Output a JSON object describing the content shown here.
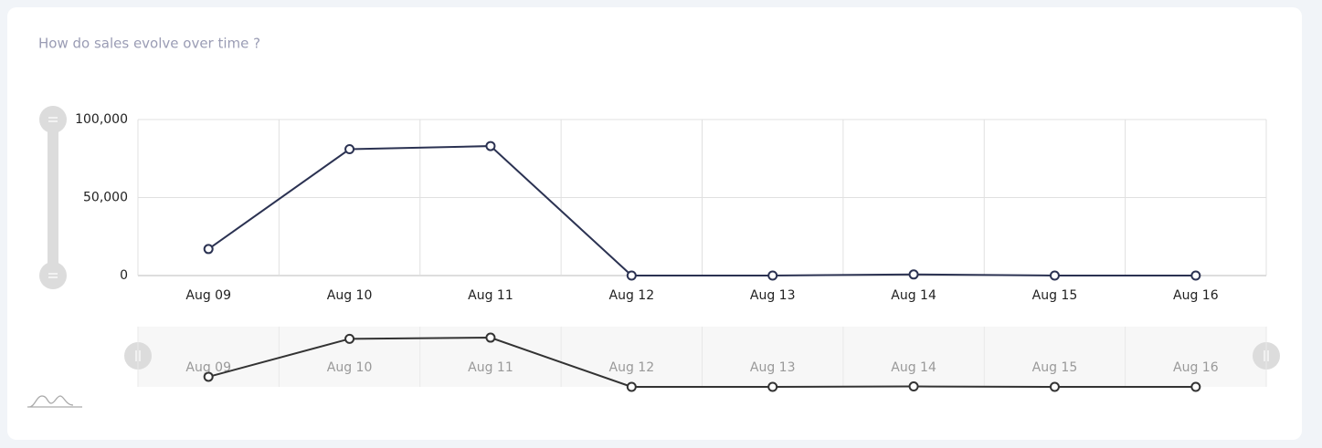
{
  "chart_data": {
    "type": "line",
    "title": "How do sales evolve over time ?",
    "categories": [
      "Aug 09",
      "Aug 10",
      "Aug 11",
      "Aug 12",
      "Aug 13",
      "Aug 14",
      "Aug 15",
      "Aug 16"
    ],
    "values": [
      17000,
      81000,
      83000,
      0,
      0,
      700,
      0,
      0
    ],
    "color": "#2b3252",
    "ylim": [
      0,
      100000
    ],
    "yticks": [
      0,
      {
        "value": 50000,
        "label": "50,000"
      },
      {
        "value": 100000,
        "label": "100,000"
      }
    ],
    "grid": true
  }
}
